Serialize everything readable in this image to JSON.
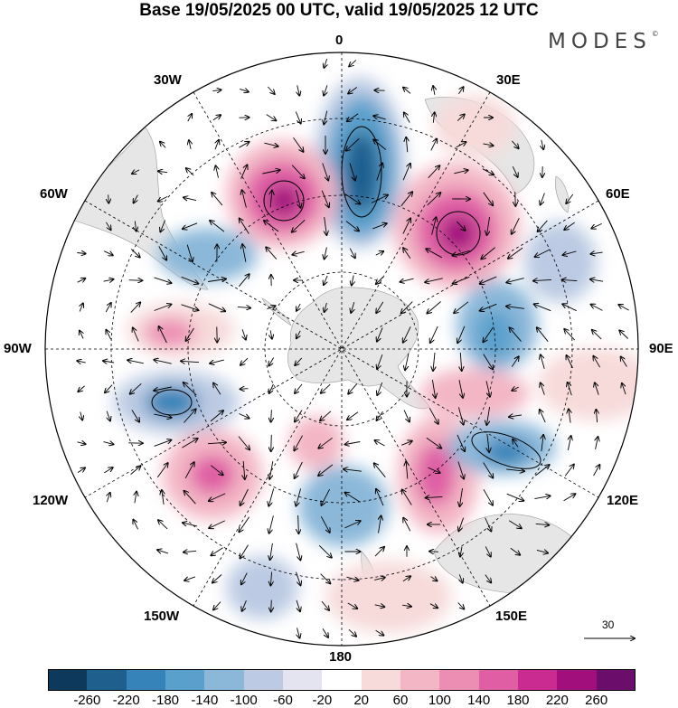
{
  "header": {
    "title": "Base 19/05/2025 00 UTC, valid 19/05/2025 12 UTC",
    "brand": "MODES"
  },
  "map": {
    "projection": "south-polar-stereographic",
    "longitude_labels": {
      "lon_0": "0",
      "lon_30e": "30E",
      "lon_60e": "60E",
      "lon_90e": "90E",
      "lon_120e": "120E",
      "lon_150e": "150E",
      "lon_180": "180",
      "lon_150w": "150W",
      "lon_120w": "120W",
      "lon_90w": "90W",
      "lon_60w": "60W",
      "lon_30w": "30W"
    },
    "reference_vector": {
      "label": "30"
    },
    "land_color": "#e8e8e8",
    "features": [
      {
        "name": "neg-center-0",
        "color": "#2b5f8f"
      },
      {
        "name": "pos-center-30w",
        "color": "#b0187a"
      },
      {
        "name": "pos-center-40e",
        "color": "#b0187a"
      }
    ]
  },
  "colorbar": {
    "colors": [
      "#0d3a5c",
      "#1e5f8e",
      "#3583b8",
      "#5aa0cc",
      "#8bb8d9",
      "#bccbe3",
      "#e4e3f0",
      "#ffffff",
      "#f7dada",
      "#f3b6c5",
      "#ec8db3",
      "#df5ea4",
      "#c92b91",
      "#a10f7d",
      "#6b0d6b"
    ],
    "ticks": [
      "-260",
      "-220",
      "-180",
      "-140",
      "-100",
      "-60",
      "-20",
      "20",
      "60",
      "100",
      "140",
      "180",
      "220",
      "260"
    ]
  }
}
